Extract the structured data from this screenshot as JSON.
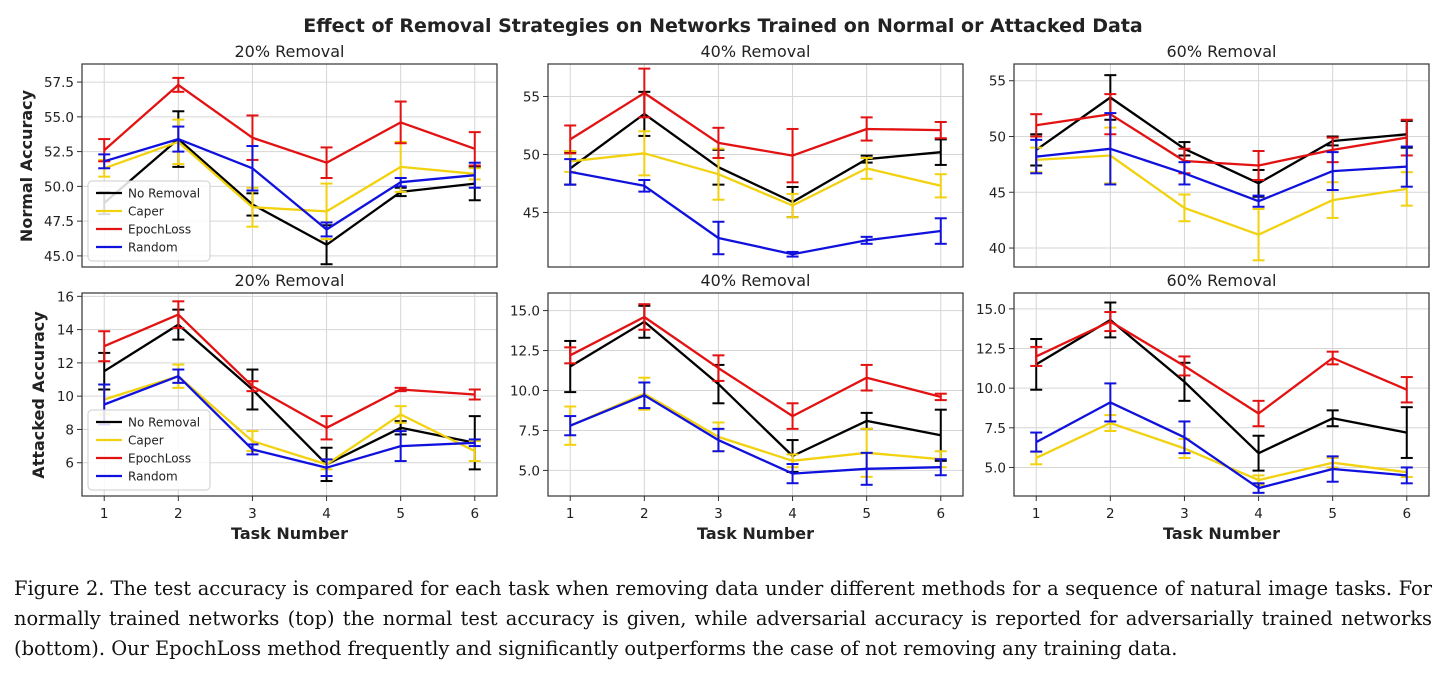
{
  "figure": {
    "suptitle": "Effect of Removal Strategies on Networks Trained on Normal or Attacked Data",
    "row_labels": [
      "Normal Accuracy",
      "Attacked Accuracy"
    ],
    "xlabel": "Task Number",
    "legend": [
      "No Removal",
      "Caper",
      "EpochLoss",
      "Random"
    ],
    "colors": {
      "No Removal": "#000000",
      "Caper": "#f2d20f",
      "EpochLoss": "#e31212",
      "Random": "#1111dd"
    }
  },
  "caption": {
    "label": "Figure 2.",
    "text": "The test accuracy is compared for each task when removing data under different methods for a sequence of natural image tasks. For normally trained networks (top) the normal test accuracy is given, while adversarial accuracy is reported for adversarially trained networks (bottom). Our EpochLoss method frequently and significantly outperforms the case of not removing any training data."
  },
  "chart_data": [
    {
      "type": "line",
      "title": "20% Removal",
      "x": [
        1,
        2,
        3,
        4,
        5,
        6
      ],
      "ylim": [
        44.2,
        58.8
      ],
      "yticks": [
        45.0,
        47.5,
        50.0,
        52.5,
        55.0,
        57.5
      ],
      "legend": "bottom-left",
      "series": [
        {
          "name": "No Removal",
          "values": [
            48.8,
            53.4,
            48.7,
            45.8,
            49.6,
            50.2
          ],
          "err": [
            0.8,
            2.0,
            0.8,
            1.4,
            0.3,
            1.2
          ]
        },
        {
          "name": "Caper",
          "values": [
            51.3,
            53.2,
            48.5,
            48.2,
            51.4,
            50.9
          ],
          "err": [
            0.6,
            1.6,
            1.4,
            2.0,
            1.8,
            0.4
          ]
        },
        {
          "name": "EpochLoss",
          "values": [
            52.6,
            57.3,
            53.5,
            51.7,
            54.6,
            52.7
          ],
          "err": [
            0.8,
            0.5,
            1.6,
            1.1,
            1.5,
            1.2
          ]
        },
        {
          "name": "Random",
          "values": [
            51.8,
            53.4,
            51.3,
            46.9,
            50.3,
            50.8
          ],
          "err": [
            0.5,
            0.9,
            1.6,
            0.5,
            0.3,
            0.9
          ]
        }
      ]
    },
    {
      "type": "line",
      "title": "40% Removal",
      "x": [
        1,
        2,
        3,
        4,
        5,
        6
      ],
      "ylim": [
        40.3,
        57.8
      ],
      "yticks": [
        45,
        50,
        55
      ],
      "series": [
        {
          "name": "No Removal",
          "values": [
            48.8,
            53.5,
            48.9,
            45.9,
            49.6,
            50.2
          ],
          "err": [
            1.4,
            1.9,
            1.5,
            1.3,
            0.3,
            1.1
          ]
        },
        {
          "name": "Caper",
          "values": [
            49.4,
            50.1,
            48.3,
            45.6,
            48.8,
            47.3
          ],
          "err": [
            0.9,
            1.9,
            2.2,
            1.0,
            0.9,
            1.0
          ]
        },
        {
          "name": "EpochLoss",
          "values": [
            51.3,
            55.3,
            51.0,
            49.9,
            52.2,
            52.1
          ],
          "err": [
            1.2,
            2.1,
            1.3,
            2.3,
            1.0,
            0.7
          ]
        },
        {
          "name": "Random",
          "values": [
            48.5,
            47.3,
            42.8,
            41.4,
            42.6,
            43.4
          ],
          "err": [
            1.1,
            0.5,
            1.4,
            0.2,
            0.3,
            1.1
          ]
        }
      ]
    },
    {
      "type": "line",
      "title": "60% Removal",
      "x": [
        1,
        2,
        3,
        4,
        5,
        6
      ],
      "ylim": [
        38.3,
        56.5
      ],
      "yticks": [
        40,
        45,
        50,
        55
      ],
      "series": [
        {
          "name": "No Removal",
          "values": [
            48.8,
            53.5,
            48.9,
            45.8,
            49.6,
            50.2
          ],
          "err": [
            1.4,
            2.0,
            0.6,
            1.2,
            0.4,
            1.2
          ]
        },
        {
          "name": "Caper",
          "values": [
            47.9,
            48.3,
            43.6,
            41.2,
            44.3,
            45.3
          ],
          "err": [
            1.1,
            2.5,
            1.2,
            2.3,
            1.6,
            1.5
          ]
        },
        {
          "name": "EpochLoss",
          "values": [
            51.0,
            52.0,
            47.8,
            47.4,
            48.8,
            49.9
          ],
          "err": [
            1.0,
            1.8,
            1.1,
            1.3,
            1.1,
            1.6
          ]
        },
        {
          "name": "Random",
          "values": [
            48.2,
            48.9,
            46.7,
            44.2,
            46.9,
            47.3
          ],
          "err": [
            1.5,
            3.2,
            1.0,
            0.5,
            1.7,
            1.8
          ]
        }
      ]
    },
    {
      "type": "line",
      "title": "20% Removal",
      "x": [
        1,
        2,
        3,
        4,
        5,
        6
      ],
      "ylim": [
        4.0,
        16.2
      ],
      "yticks": [
        6,
        8,
        10,
        12,
        14,
        16
      ],
      "legend": "bottom-left",
      "series": [
        {
          "name": "No Removal",
          "values": [
            11.5,
            14.3,
            10.4,
            5.9,
            8.1,
            7.2
          ],
          "err": [
            1.1,
            0.9,
            1.2,
            1.0,
            0.4,
            1.6
          ]
        },
        {
          "name": "Caper",
          "values": [
            9.8,
            11.2,
            7.3,
            5.9,
            8.9,
            6.7
          ],
          "err": [
            0.9,
            0.7,
            0.6,
            0.3,
            0.5,
            0.6
          ]
        },
        {
          "name": "EpochLoss",
          "values": [
            13.0,
            14.9,
            10.6,
            8.1,
            10.4,
            10.1
          ],
          "err": [
            0.9,
            0.8,
            0.3,
            0.7,
            0.1,
            0.3
          ]
        },
        {
          "name": "Random",
          "values": [
            9.5,
            11.2,
            6.8,
            5.7,
            7.0,
            7.2
          ],
          "err": [
            1.2,
            0.4,
            0.3,
            0.5,
            0.9,
            0.2
          ]
        }
      ]
    },
    {
      "type": "line",
      "title": "40% Removal",
      "x": [
        1,
        2,
        3,
        4,
        5,
        6
      ],
      "ylim": [
        3.4,
        16.1
      ],
      "yticks": [
        5.0,
        7.5,
        10.0,
        12.5,
        15.0
      ],
      "series": [
        {
          "name": "No Removal",
          "values": [
            11.5,
            14.3,
            10.4,
            5.9,
            8.1,
            7.2
          ],
          "err": [
            1.6,
            1.0,
            1.2,
            1.0,
            0.5,
            1.6
          ]
        },
        {
          "name": "Caper",
          "values": [
            7.8,
            9.8,
            7.1,
            5.6,
            6.1,
            5.7
          ],
          "err": [
            1.2,
            1.0,
            0.9,
            0.4,
            1.5,
            0.5
          ]
        },
        {
          "name": "EpochLoss",
          "values": [
            12.2,
            14.6,
            11.4,
            8.4,
            10.8,
            9.6
          ],
          "err": [
            0.5,
            0.8,
            0.8,
            0.8,
            0.8,
            0.2
          ]
        },
        {
          "name": "Random",
          "values": [
            7.8,
            9.7,
            6.9,
            4.8,
            5.1,
            5.2
          ],
          "err": [
            0.6,
            0.8,
            0.7,
            0.6,
            1.0,
            0.5
          ]
        }
      ]
    },
    {
      "type": "line",
      "title": "60% Removal",
      "x": [
        1,
        2,
        3,
        4,
        5,
        6
      ],
      "ylim": [
        3.2,
        16.0
      ],
      "yticks": [
        5.0,
        7.5,
        10.0,
        12.5,
        15.0
      ],
      "series": [
        {
          "name": "No Removal",
          "values": [
            11.5,
            14.3,
            10.4,
            5.9,
            8.1,
            7.2
          ],
          "err": [
            1.6,
            1.1,
            1.2,
            1.1,
            0.5,
            1.6
          ]
        },
        {
          "name": "Caper",
          "values": [
            5.6,
            7.8,
            6.2,
            4.2,
            5.3,
            4.7
          ],
          "err": [
            0.4,
            0.5,
            0.6,
            0.3,
            0.3,
            0.3
          ]
        },
        {
          "name": "EpochLoss",
          "values": [
            12.0,
            14.2,
            11.4,
            8.4,
            11.9,
            9.9
          ],
          "err": [
            0.6,
            0.6,
            0.6,
            0.8,
            0.4,
            0.8
          ]
        },
        {
          "name": "Random",
          "values": [
            6.6,
            9.1,
            6.9,
            3.7,
            4.9,
            4.5
          ],
          "err": [
            0.6,
            1.2,
            1.0,
            0.3,
            0.8,
            0.5
          ]
        }
      ]
    }
  ]
}
